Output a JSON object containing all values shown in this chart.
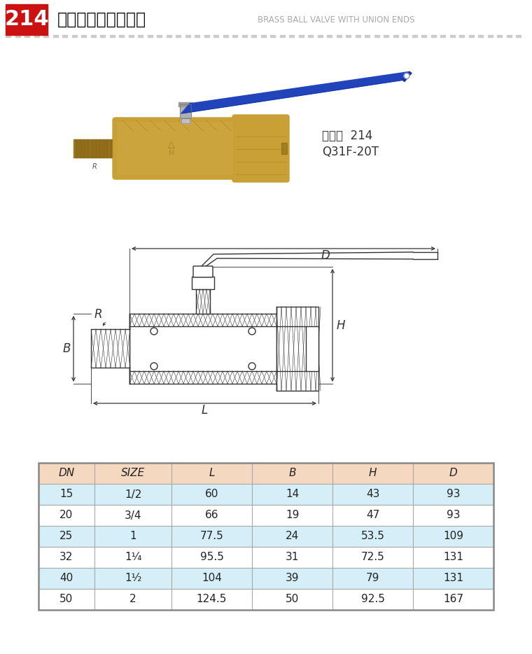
{
  "title_num": "214",
  "title_cn": "黄铜球阀（足通口）",
  "title_en": "BRASS BALL VALVE WITH UNION ENDS",
  "product_code": "货号：  214",
  "product_model": "Q31F-20T",
  "table_headers": [
    "DN",
    "SIZE",
    "L",
    "B",
    "H",
    "D"
  ],
  "table_data": [
    [
      "15",
      "1/2",
      "60",
      "14",
      "43",
      "93"
    ],
    [
      "20",
      "3/4",
      "66",
      "19",
      "47",
      "93"
    ],
    [
      "25",
      "1",
      "77.5",
      "24",
      "53.5",
      "109"
    ],
    [
      "32",
      "1¹⁄₄",
      "95.5",
      "31",
      "72.5",
      "131"
    ],
    [
      "40",
      "1¹⁄₂",
      "104",
      "39",
      "79",
      "131"
    ],
    [
      "50",
      "2",
      "124.5",
      "50",
      "92.5",
      "167"
    ]
  ],
  "header_bg": "#f5d8c0",
  "row_bg_blue": "#d6eef8",
  "row_bg_white": "#ffffff",
  "title_num_bg": "#cc1111",
  "border_color": "#aaaaaa",
  "body_bg": "#ffffff",
  "lc": "#333333"
}
